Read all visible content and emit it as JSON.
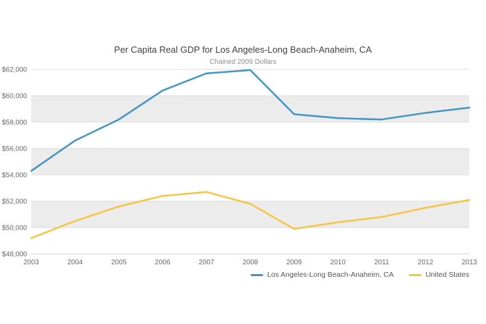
{
  "chart_data": {
    "type": "line",
    "title": "Per Capita Real GDP for Los Angeles-Long Beach-Anaheim, CA",
    "subtitle": "Chained 2009 Dollars",
    "x": [
      2003,
      2004,
      2005,
      2006,
      2007,
      2008,
      2009,
      2010,
      2011,
      2012,
      2013
    ],
    "xtick_labels": [
      "2003",
      "2004",
      "2005",
      "2006",
      "2007",
      "2008",
      "2009",
      "2010",
      "2011",
      "2012",
      "2013"
    ],
    "series": [
      {
        "name": "Los Angeles-Long Beach-Anaheim, CA",
        "color": "#4295c7",
        "values": [
          54300,
          56600,
          58200,
          60400,
          61700,
          61950,
          58600,
          58300,
          58200,
          58700,
          59100
        ]
      },
      {
        "name": "United States",
        "color": "#f9c440",
        "values": [
          49200,
          50500,
          51600,
          52400,
          52700,
          51800,
          49900,
          50400,
          50800,
          51500,
          52100
        ]
      }
    ],
    "ylim": [
      48000,
      62000
    ],
    "ytick_values": [
      48000,
      50000,
      52000,
      54000,
      56000,
      58000,
      60000,
      62000
    ],
    "ytick_labels": [
      "$48,000",
      "$50,000",
      "$52,000",
      "$54,000",
      "$56,000",
      "$58,000",
      "$60,000",
      "$62,000"
    ],
    "grid": "horizontal",
    "band_fill": "#ececec",
    "grid_color": "#dcdcdc",
    "axis_line_color": "#cccccc",
    "tick_text_color": "#666666",
    "legend_position": "bottom-right"
  }
}
